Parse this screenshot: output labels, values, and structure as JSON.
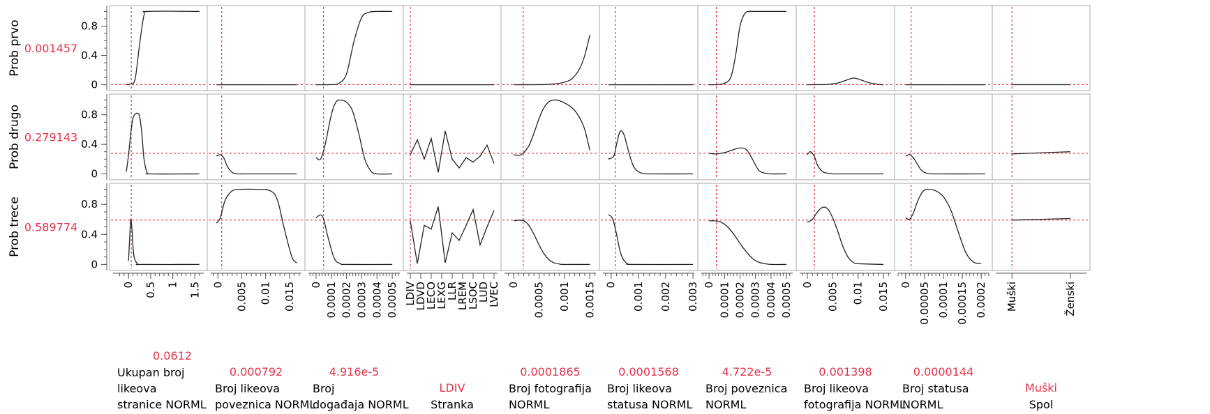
{
  "colors": {
    "curve": "#222222",
    "crosshair": "#e5324b",
    "frame": "#a8a8a8",
    "red_text": "#e5324b"
  },
  "chart_data": {
    "type": "line",
    "responses": [
      {
        "label": "Prob prvo",
        "value": "0.001457",
        "current": 0.001457,
        "ylim": [
          -0.08,
          1.08
        ],
        "ticks": [
          "0",
          "0.4",
          "0.8"
        ],
        "tick_values": [
          0,
          0.4,
          0.8
        ]
      },
      {
        "label": "Prob drugo",
        "value": "0.279143",
        "current": 0.279143,
        "ylim": [
          -0.08,
          1.08
        ],
        "ticks": [
          "0",
          "0.4",
          "0.8"
        ],
        "tick_values": [
          0,
          0.4,
          0.8
        ]
      },
      {
        "label": "Prob trece",
        "value": "0.589774",
        "current": 0.589774,
        "ylim": [
          -0.08,
          1.08
        ],
        "ticks": [
          "0",
          "0.4",
          "0.8"
        ],
        "tick_values": [
          0,
          0.4,
          0.8
        ]
      }
    ],
    "factors": [
      {
        "name_lines": [
          "Ukupan broj",
          "likeova",
          "stranice NORML"
        ],
        "value": "0.0612",
        "current": 0.0612,
        "xlim": [
          -0.35,
          1.7
        ],
        "ticks": [
          "0",
          "0.5",
          "1",
          "1.5"
        ],
        "tick_values": [
          0,
          0.5,
          1,
          1.5
        ],
        "curves": [
          {
            "x": [
              -0.05,
              0.05,
              0.15,
              0.25,
              0.35,
              0.45,
              1.6
            ],
            "y": [
              0.001,
              0.01,
              0.08,
              0.55,
              0.95,
              1.0,
              1.0
            ]
          },
          {
            "x": [
              -0.05,
              0.0,
              0.05,
              0.1,
              0.15,
              0.2,
              0.25,
              0.3,
              0.35,
              0.42,
              0.5,
              1.6
            ],
            "y": [
              0.03,
              0.26,
              0.55,
              0.75,
              0.81,
              0.82,
              0.78,
              0.55,
              0.2,
              0.02,
              0.0,
              0.0
            ]
          },
          {
            "x": [
              0.0,
              0.03,
              0.05,
              0.08,
              0.12,
              0.2,
              0.3,
              1.6
            ],
            "y": [
              0.05,
              0.4,
              0.6,
              0.45,
              0.12,
              0.01,
              0.0,
              0.0
            ]
          }
        ]
      },
      {
        "name_lines": [
          "Broj likeova",
          "poveznica NORML"
        ],
        "value": "0.000792",
        "current": 0.000792,
        "xlim": [
          -0.0015,
          0.0175
        ],
        "ticks": [
          "0",
          "0.005",
          "0.01",
          "0.015"
        ],
        "tick_values": [
          0,
          0.005,
          0.01,
          0.015
        ],
        "curves": [
          {
            "x": [
              -0.0003,
              0.0165
            ],
            "y": [
              0.0,
              0.0
            ]
          },
          {
            "x": [
              -0.0003,
              0.0005,
              0.0012,
              0.002,
              0.003,
              0.004,
              0.006,
              0.0165
            ],
            "y": [
              0.24,
              0.26,
              0.22,
              0.1,
              0.02,
              0.0,
              0.0,
              0.0
            ]
          },
          {
            "x": [
              -0.0003,
              0.0005,
              0.0015,
              0.003,
              0.005,
              0.008,
              0.011,
              0.0125,
              0.014,
              0.0155,
              0.0165
            ],
            "y": [
              0.55,
              0.62,
              0.85,
              0.98,
              1.0,
              1.0,
              0.98,
              0.85,
              0.45,
              0.1,
              0.02
            ]
          }
        ]
      },
      {
        "name_lines": [
          "Broj",
          "događaja NORML"
        ],
        "value": "4.916e-5",
        "current": 4.916e-05,
        "xlim": [
          -5e-05,
          0.00055
        ],
        "ticks": [
          "0",
          "0.0001",
          "0.0002",
          "0.0003",
          "0.0004",
          "0.0005"
        ],
        "tick_values": [
          0,
          0.0001,
          0.0002,
          0.0003,
          0.0004,
          0.0005
        ],
        "curves": [
          {
            "x": [
              0.0,
              0.0001,
              0.00015,
              0.0002,
              0.00025,
              0.0003,
              0.00035,
              0.0004,
              0.0005
            ],
            "y": [
              0.0,
              0.002,
              0.02,
              0.15,
              0.6,
              0.92,
              0.99,
              1.0,
              1.0
            ]
          },
          {
            "x": [
              0.0,
              3e-05,
              6e-05,
              0.0001,
              0.00013,
              0.00016,
              0.0002,
              0.00024,
              0.00028,
              0.00032,
              0.00036,
              0.0004,
              0.0005
            ],
            "y": [
              0.22,
              0.2,
              0.4,
              0.8,
              0.97,
              1.0,
              0.97,
              0.85,
              0.55,
              0.2,
              0.04,
              0.0,
              0.0
            ]
          },
          {
            "x": [
              0.0,
              3e-05,
              5e-05,
              8e-05,
              0.00012,
              0.00016,
              0.0002,
              0.0005
            ],
            "y": [
              0.62,
              0.66,
              0.6,
              0.35,
              0.08,
              0.01,
              0.0,
              0.0
            ]
          }
        ]
      },
      {
        "name_lines": [
          "Stranka"
        ],
        "value": "LDIV",
        "current": "LDIV",
        "categorical": true,
        "xlim": [
          -0.5,
          12.5
        ],
        "ticks": [
          "LDIV",
          "LDVD",
          "LECO",
          "LEXG",
          "LLR",
          "LREM",
          "LSOC",
          "LUD",
          "LVEC"
        ],
        "tick_values": [
          0,
          1.5,
          3,
          4.5,
          6,
          7.5,
          9,
          10.5,
          12
        ],
        "curves": [
          {
            "x": [
              0,
              12
            ],
            "y": [
              0.0,
              0.0
            ]
          },
          {
            "x": [
              0,
              1,
              2,
              3,
              4,
              5,
              6,
              7,
              8,
              9,
              10,
              11,
              12
            ],
            "y": [
              0.26,
              0.46,
              0.2,
              0.48,
              0.02,
              0.58,
              0.2,
              0.08,
              0.22,
              0.16,
              0.24,
              0.39,
              0.14
            ]
          },
          {
            "x": [
              0,
              1,
              2,
              3,
              4,
              5,
              6,
              7,
              8,
              9,
              10,
              11,
              12
            ],
            "y": [
              0.58,
              0.01,
              0.52,
              0.47,
              0.77,
              0.02,
              0.42,
              0.32,
              0.52,
              0.73,
              0.26,
              0.5,
              0.72
            ]
          }
        ]
      },
      {
        "name_lines": [
          "Broj fotografija",
          "NORML"
        ],
        "value": "0.0001865",
        "current": 0.0001865,
        "xlim": [
          -0.00018,
          0.00162
        ],
        "ticks": [
          "0",
          "0.0005",
          "0.001",
          "0.0015"
        ],
        "tick_values": [
          0,
          0.0005,
          0.001,
          0.0015
        ],
        "curves": [
          {
            "x": [
              0.0,
              0.0006,
              0.0009,
              0.0011,
              0.0012,
              0.0013,
              0.0014,
              0.0015
            ],
            "y": [
              0.0,
              0.003,
              0.02,
              0.06,
              0.12,
              0.22,
              0.4,
              0.68
            ]
          },
          {
            "x": [
              0.0,
              0.0001,
              0.0002,
              0.0003,
              0.0004,
              0.0005,
              0.0006,
              0.0007,
              0.0008,
              0.0009,
              0.001,
              0.0011,
              0.0012,
              0.0013,
              0.0014,
              0.0015
            ],
            "y": [
              0.26,
              0.25,
              0.29,
              0.38,
              0.55,
              0.75,
              0.9,
              0.98,
              1.0,
              0.99,
              0.96,
              0.92,
              0.86,
              0.76,
              0.6,
              0.32
            ]
          },
          {
            "x": [
              0.0,
              0.0001,
              0.0002,
              0.0003,
              0.0004,
              0.0005,
              0.0006,
              0.0007,
              0.0008,
              0.0009,
              0.001,
              0.0015
            ],
            "y": [
              0.58,
              0.59,
              0.58,
              0.52,
              0.4,
              0.26,
              0.14,
              0.06,
              0.02,
              0.005,
              0.0,
              0.0
            ]
          }
        ]
      },
      {
        "name_lines": [
          "Broj likeova",
          "statusa NORML"
        ],
        "value": "0.0001568",
        "current": 0.0001568,
        "xlim": [
          -0.0003,
          0.00305
        ],
        "ticks": [
          "0",
          "0.001",
          "0.002",
          "0.003"
        ],
        "tick_values": [
          0,
          0.001,
          0.002,
          0.003
        ],
        "curves": [
          {
            "x": [
              -0.0001,
              0.003
            ],
            "y": [
              0.0,
              0.0
            ]
          },
          {
            "x": [
              -0.0001,
              0.0001,
              0.0002,
              0.0003,
              0.0004,
              0.0005,
              0.0006,
              0.0008,
              0.001,
              0.0012,
              0.0015,
              0.003
            ],
            "y": [
              0.2,
              0.24,
              0.4,
              0.55,
              0.58,
              0.5,
              0.36,
              0.12,
              0.03,
              0.005,
              0.0,
              0.0
            ]
          },
          {
            "x": [
              -0.0001,
              0.0,
              0.0001,
              0.0002,
              0.0003,
              0.0004,
              0.0005,
              0.0006,
              0.0008,
              0.003
            ],
            "y": [
              0.66,
              0.64,
              0.56,
              0.4,
              0.22,
              0.1,
              0.04,
              0.01,
              0.0,
              0.0
            ]
          }
        ]
      },
      {
        "name_lines": [
          "Broj poveznica",
          "NORML"
        ],
        "value": "4.722e-5",
        "current": 4.722e-05,
        "xlim": [
          -5e-05,
          0.00054
        ],
        "ticks": [
          "0",
          "0.0001",
          "0.0002",
          "0.0003",
          "0.0004",
          "0.0005"
        ],
        "tick_values": [
          0,
          0.0001,
          0.0002,
          0.0003,
          0.0004,
          0.0005
        ],
        "curves": [
          {
            "x": [
              0.0,
              6e-05,
              0.0001,
              0.00014,
              0.00017,
              0.0002,
              0.00023,
              0.00026,
              0.0003,
              0.0005
            ],
            "y": [
              0.0,
              0.002,
              0.02,
              0.1,
              0.38,
              0.8,
              0.97,
              1.0,
              1.0,
              1.0
            ]
          },
          {
            "x": [
              0.0,
              4e-05,
              8e-05,
              0.00012,
              0.00016,
              0.0002,
              0.00024,
              0.00028,
              0.00032,
              0.00036,
              0.0004,
              0.0005
            ],
            "y": [
              0.28,
              0.27,
              0.28,
              0.3,
              0.33,
              0.35,
              0.33,
              0.2,
              0.05,
              0.01,
              0.0,
              0.0
            ]
          },
          {
            "x": [
              0.0,
              4e-05,
              8e-05,
              0.00012,
              0.00016,
              0.0002,
              0.00024,
              0.00028,
              0.00032,
              0.00036,
              0.0004,
              0.0005
            ],
            "y": [
              0.58,
              0.58,
              0.56,
              0.5,
              0.4,
              0.28,
              0.17,
              0.08,
              0.03,
              0.01,
              0.0,
              0.0
            ]
          }
        ]
      },
      {
        "name_lines": [
          "Broj likeova",
          "fotografija NORML"
        ],
        "value": "0.001398",
        "current": 0.001398,
        "xlim": [
          -0.0015,
          0.0165
        ],
        "ticks": [
          "0",
          "0.005",
          "0.01",
          "0.015"
        ],
        "tick_values": [
          0,
          0.005,
          0.01,
          0.015
        ],
        "curves": [
          {
            "x": [
              0.0,
              0.004,
              0.006,
              0.008,
              0.009,
              0.01,
              0.012,
              0.014,
              0.015
            ],
            "y": [
              0.0,
              0.005,
              0.025,
              0.07,
              0.09,
              0.08,
              0.03,
              0.005,
              0.0
            ]
          },
          {
            "x": [
              0.0,
              0.0005,
              0.001,
              0.0015,
              0.002,
              0.003,
              0.004,
              0.005,
              0.006,
              0.015
            ],
            "y": [
              0.26,
              0.3,
              0.28,
              0.22,
              0.12,
              0.03,
              0.01,
              0.0,
              0.0,
              0.0
            ]
          },
          {
            "x": [
              0.0,
              0.001,
              0.002,
              0.003,
              0.004,
              0.005,
              0.006,
              0.007,
              0.008,
              0.009,
              0.01,
              0.015
            ],
            "y": [
              0.56,
              0.6,
              0.7,
              0.76,
              0.74,
              0.62,
              0.44,
              0.24,
              0.1,
              0.03,
              0.01,
              0.0
            ]
          }
        ]
      },
      {
        "name_lines": [
          "Broj statusa",
          "NORML"
        ],
        "value": "0.0000144",
        "current": 1.44e-05,
        "xlim": [
          -2e-05,
          0.00022
        ],
        "ticks": [
          "0",
          "0.00005",
          "0.0001",
          "0.00015",
          "0.0002"
        ],
        "tick_values": [
          0,
          5e-05,
          0.0001,
          0.00015,
          0.0002
        ],
        "curves": [
          {
            "x": [
              0.0,
              0.00021
            ],
            "y": [
              0.0,
              0.0
            ]
          },
          {
            "x": [
              0.0,
              1e-05,
              2e-05,
              3e-05,
              4e-05,
              5e-05,
              6e-05,
              8e-05,
              0.00021
            ],
            "y": [
              0.24,
              0.26,
              0.22,
              0.14,
              0.06,
              0.02,
              0.005,
              0.0,
              0.0
            ]
          },
          {
            "x": [
              0.0,
              1e-05,
              2e-05,
              3e-05,
              4e-05,
              5e-05,
              6e-05,
              8e-05,
              0.0001,
              0.00012,
              0.00014,
              0.00016,
              0.00018,
              0.0002
            ],
            "y": [
              0.62,
              0.6,
              0.68,
              0.82,
              0.93,
              0.99,
              1.0,
              0.98,
              0.9,
              0.72,
              0.42,
              0.15,
              0.03,
              0.01
            ]
          }
        ]
      },
      {
        "name_lines": [
          "Spol"
        ],
        "value": "Muški",
        "current": "Muški",
        "categorical": true,
        "xlim": [
          -0.5,
          2.3
        ],
        "ticks": [
          "Muški",
          "Ženski"
        ],
        "tick_values": [
          0,
          1.8
        ],
        "curves": [
          {
            "x": [
              0,
              1.8
            ],
            "y": [
              0.001,
              0.001
            ]
          },
          {
            "x": [
              0,
              1.8
            ],
            "y": [
              0.27,
              0.3
            ]
          },
          {
            "x": [
              0,
              1.8
            ],
            "y": [
              0.59,
              0.61
            ]
          }
        ]
      }
    ]
  }
}
